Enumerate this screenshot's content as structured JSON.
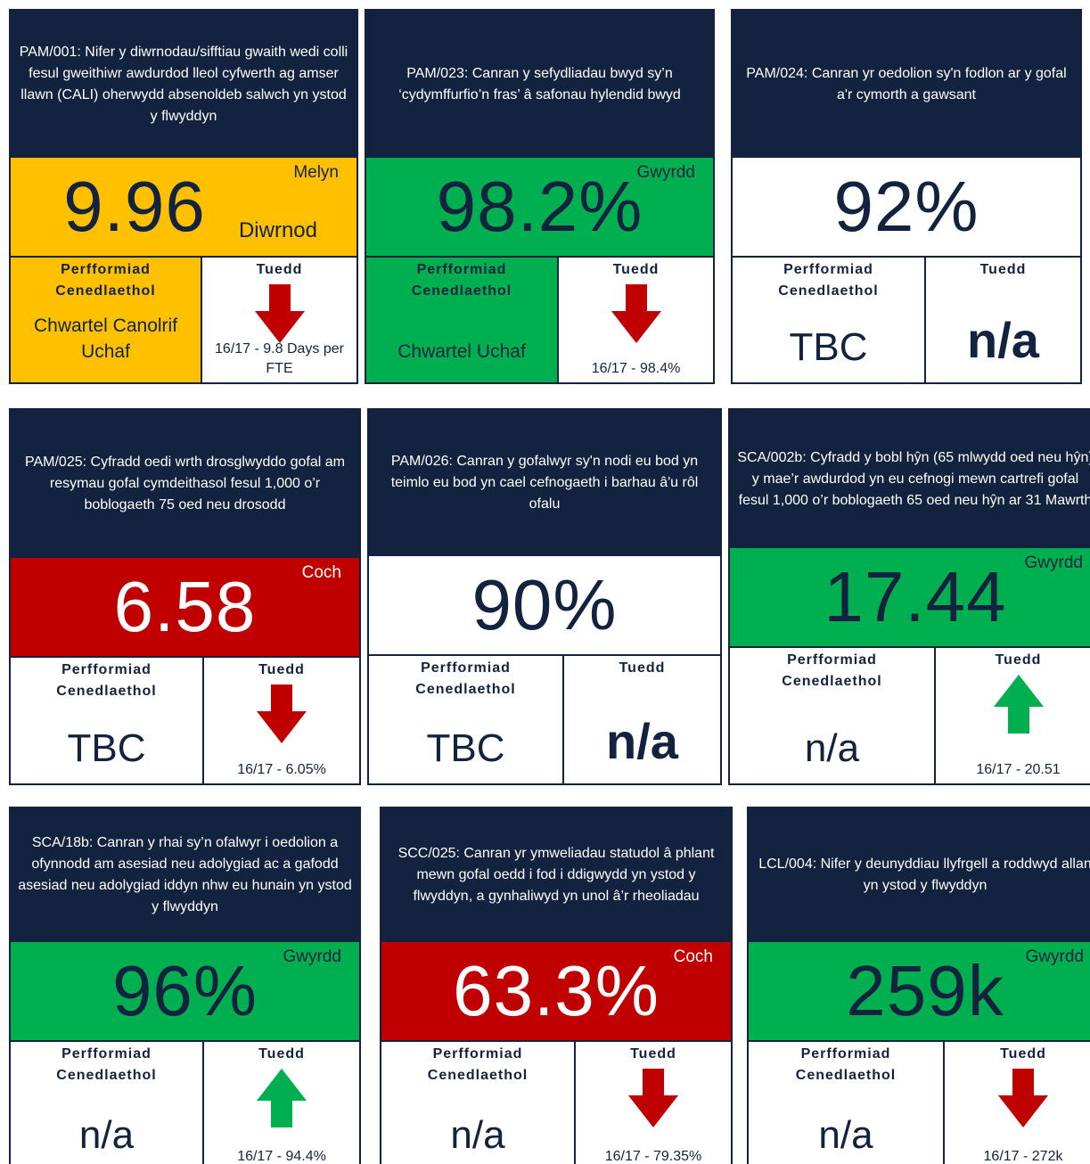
{
  "labels": {
    "national": "Perfformiad Cenedlaethol",
    "trend": "Tuedd"
  },
  "cards": [
    {
      "title": "PAM/001: Nifer y diwrnodau/sifftiau gwaith wedi colli fesul gweithiwr awdurdod lleol cyfwerth ag amser llawn (CALI) oherwydd absenoldeb salwch yn ystod y flwyddyn",
      "value": "9.96",
      "unit": "Diwrnod",
      "status": "Melyn",
      "band_color": "#ffc000",
      "value_color": "#13233f",
      "national": "Chwartel Canolrif Uchaf",
      "national_color": "#ffc000",
      "trend_direction": "down",
      "trend": "16/17 - 9.8 Days per FTE"
    },
    {
      "title": "PAM/023: Canran y sefydliadau bwyd sy’n ‘cydymffurfio’n fras’ â safonau hylendid bwyd",
      "value": "98.2%",
      "status": "Gwyrdd",
      "band_color": "#00b050",
      "value_color": "#13233f",
      "national": "Chwartel Uchaf",
      "national_color": "#00b050",
      "trend_direction": "down",
      "trend": "16/17 - 98.4%"
    },
    {
      "title": "PAM/024: Canran yr oedolion sy'n fodlon ar y gofal a'r cymorth a gawsant",
      "value": "92%",
      "band_color": "#ffffff",
      "value_color": "#13233f",
      "national": "TBC",
      "national_color": "#ffffff",
      "trend": "n/a"
    },
    {
      "title": "PAM/025: Cyfradd oedi wrth drosglwyddo gofal am resymau gofal cymdeithasol fesul 1,000 o’r boblogaeth 75 oed neu drosodd",
      "value": "6.58",
      "status": "Coch",
      "band_color": "#c00000",
      "value_color": "#ffffff",
      "national": "TBC",
      "national_color": "#ffffff",
      "trend_direction": "down",
      "trend": "16/17 - 6.05%"
    },
    {
      "title": "PAM/026: Canran y gofalwyr sy'n nodi eu bod yn teimlo eu bod yn cael cefnogaeth i barhau â'u rôl ofalu",
      "value": "90%",
      "band_color": "#ffffff",
      "value_color": "#13233f",
      "national": "TBC",
      "national_color": "#ffffff",
      "trend": "n/a"
    },
    {
      "title": "SCA/002b: Cyfradd y bobl hŷn (65 mlwydd oed neu hŷn) y mae’r awdurdod yn eu cefnogi mewn cartrefi gofal fesul 1,000 o’r boblogaeth 65 oed neu hŷn ar 31 Mawrth",
      "value": "17.44",
      "status": "Gwyrdd",
      "band_color": "#00b050",
      "value_color": "#13233f",
      "national": "n/a",
      "national_color": "#ffffff",
      "trend_direction": "up",
      "trend": "16/17 - 20.51"
    },
    {
      "title": "SCA/18b: Canran y rhai sy’n ofalwyr i oedolion a ofynnodd am asesiad neu adolygiad ac a gafodd asesiad neu adolygiad iddyn nhw eu hunain yn ystod y flwyddyn",
      "value": "96%",
      "status": "Gwyrdd",
      "band_color": "#00b050",
      "value_color": "#13233f",
      "national": "n/a",
      "national_color": "#ffffff",
      "trend_direction": "up",
      "trend": "16/17 - 94.4%"
    },
    {
      "title": "SCC/025: Canran yr ymweliadau statudol â phlant mewn gofal oedd i fod i ddigwydd yn ystod y flwyddyn, a gynhaliwyd yn unol â’r rheoliadau",
      "value": "63.3%",
      "status": "Coch",
      "band_color": "#c00000",
      "value_color": "#ffffff",
      "national": "n/a",
      "national_color": "#ffffff",
      "trend_direction": "down",
      "trend": "16/17 - 79.35%"
    },
    {
      "title": "LCL/004: Nifer y deunyddiau llyfrgell a roddwyd allan yn ystod y flwyddyn",
      "value": "259k",
      "status": "Gwyrdd",
      "band_color": "#00b050",
      "value_color": "#13233f",
      "national": "n/a",
      "national_color": "#ffffff",
      "trend_direction": "down",
      "trend": "16/17 - 272k"
    }
  ]
}
